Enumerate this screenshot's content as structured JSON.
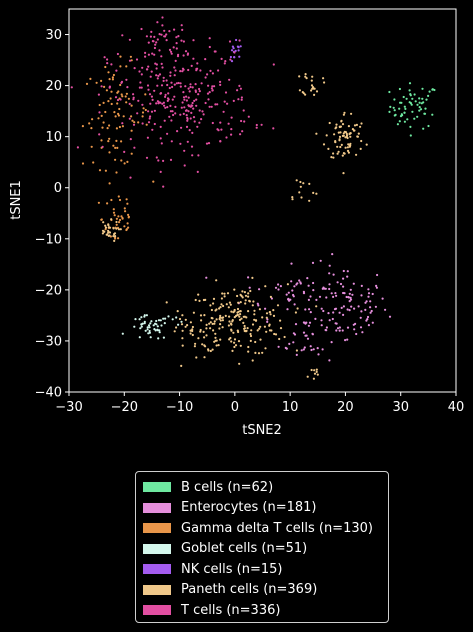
{
  "chart_data": {
    "type": "scatter",
    "xlabel": "tSNE2",
    "ylabel": "tSNE1",
    "xlim": [
      -30,
      40
    ],
    "ylim": [
      -40,
      35
    ],
    "xticks": [
      -30,
      -20,
      -10,
      0,
      10,
      20,
      30,
      40
    ],
    "yticks": [
      -40,
      -30,
      -20,
      -10,
      0,
      10,
      20,
      30
    ],
    "xtick_labels": [
      "−30",
      "−20",
      "−10",
      "0",
      "10",
      "20",
      "30",
      "40"
    ],
    "ytick_labels": [
      "−40",
      "−30",
      "−20",
      "−10",
      "0",
      "10",
      "20",
      "30"
    ],
    "grid": false,
    "legend_position": "below",
    "series": [
      {
        "name": "B cells (n=62)",
        "color": "#6ee8a0",
        "clusters": [
          {
            "cx": 32.5,
            "cy": 16.0,
            "sx": 2.2,
            "sy": 2.2,
            "n": 58
          },
          {
            "cx": 29.5,
            "cy": 13.5,
            "sx": 0.8,
            "sy": 0.7,
            "n": 4
          }
        ]
      },
      {
        "name": "Enterocytes (n=181)",
        "color": "#e58fdc",
        "clusters": [
          {
            "cx": 20.0,
            "cy": -23.0,
            "sx": 3.8,
            "sy": 4.0,
            "n": 95
          },
          {
            "cx": 10.5,
            "cy": -20.5,
            "sx": 4.5,
            "sy": 2.5,
            "n": 50
          },
          {
            "cx": 13.0,
            "cy": -29.0,
            "sx": 2.5,
            "sy": 3.0,
            "n": 36
          }
        ]
      },
      {
        "name": "Gamma delta T cells (n=130)",
        "color": "#e8964a",
        "clusters": [
          {
            "cx": -21.5,
            "cy": 14.0,
            "sx": 3.0,
            "sy": 5.0,
            "n": 90
          },
          {
            "cx": -21.0,
            "cy": -6.0,
            "sx": 1.5,
            "sy": 3.5,
            "n": 40
          }
        ]
      },
      {
        "name": "Goblet cells (n=51)",
        "color": "#d4f7ec",
        "clusters": [
          {
            "cx": -15.5,
            "cy": -27.5,
            "sx": 1.8,
            "sy": 1.2,
            "n": 46
          },
          {
            "cx": -10.5,
            "cy": -25.5,
            "sx": 1.0,
            "sy": 0.8,
            "n": 5
          }
        ]
      },
      {
        "name": "NK cells (n=15)",
        "color": "#a45cf0",
        "clusters": [
          {
            "cx": 0.0,
            "cy": 26.0,
            "sx": 0.7,
            "sy": 1.2,
            "n": 15
          }
        ]
      },
      {
        "name": "Paneth cells (n=369)",
        "color": "#f0c88a",
        "clusters": [
          {
            "cx": 0.5,
            "cy": -26.0,
            "sx": 4.5,
            "sy": 3.5,
            "n": 190
          },
          {
            "cx": 20.0,
            "cy": 10.0,
            "sx": 1.8,
            "sy": 2.5,
            "n": 75
          },
          {
            "cx": 14.0,
            "cy": 20.5,
            "sx": 0.9,
            "sy": 1.2,
            "n": 20
          },
          {
            "cx": 12.0,
            "cy": -0.5,
            "sx": 1.5,
            "sy": 1.5,
            "n": 12
          },
          {
            "cx": 14.0,
            "cy": -36.5,
            "sx": 0.8,
            "sy": 0.8,
            "n": 8
          },
          {
            "cx": -23.0,
            "cy": -8.5,
            "sx": 1.0,
            "sy": 1.0,
            "n": 30
          },
          {
            "cx": -7.0,
            "cy": -28.0,
            "sx": 2.0,
            "sy": 2.0,
            "n": 34
          }
        ]
      },
      {
        "name": "T cells (n=336)",
        "color": "#e24fa2",
        "clusters": [
          {
            "cx": -10.0,
            "cy": 17.5,
            "sx": 6.5,
            "sy": 5.5,
            "n": 300
          },
          {
            "cx": -12.5,
            "cy": 29.0,
            "sx": 2.5,
            "sy": 1.8,
            "n": 36
          }
        ]
      }
    ]
  }
}
